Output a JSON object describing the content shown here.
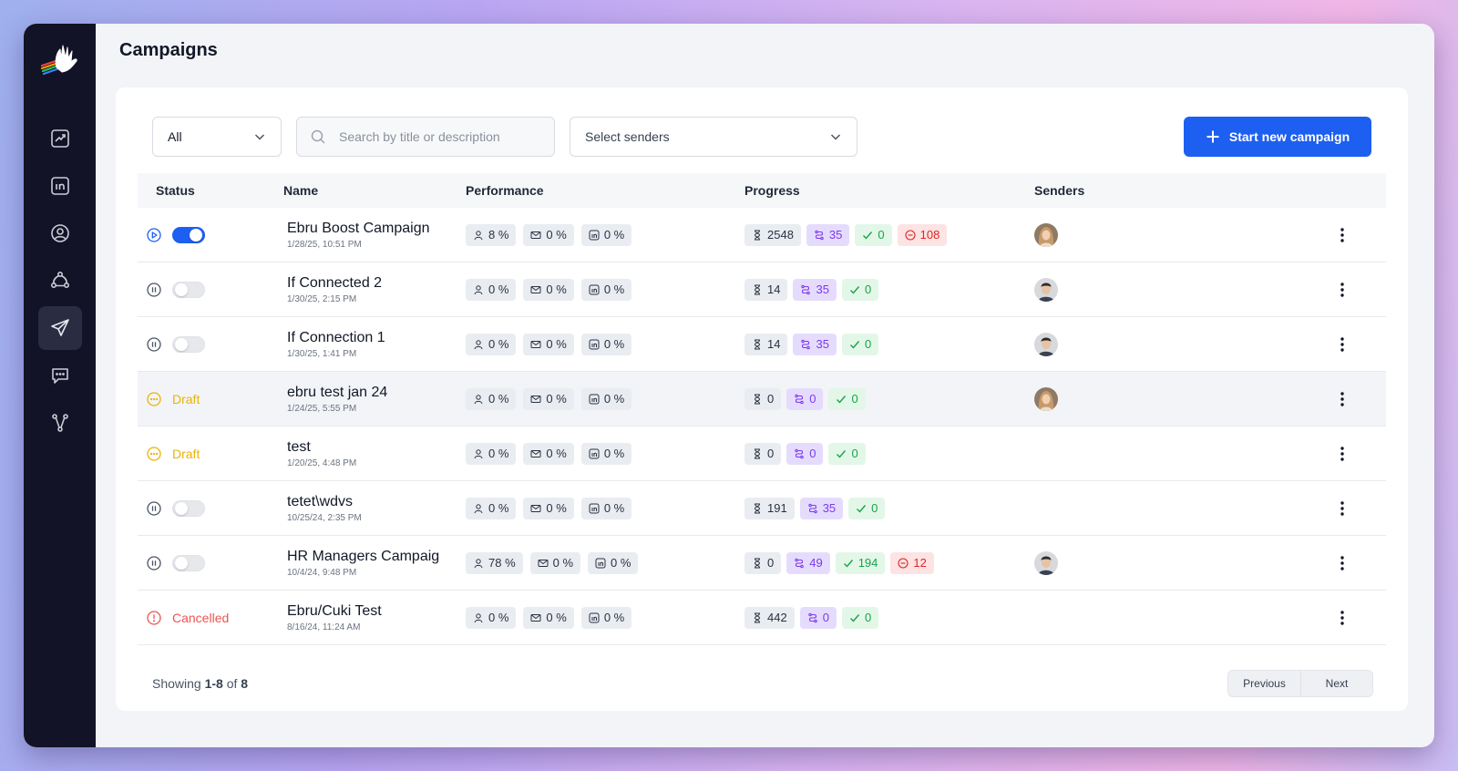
{
  "page_title": "Campaigns",
  "filters": {
    "status_value": "All",
    "search_placeholder": "Search by title or description",
    "senders_placeholder": "Select senders",
    "new_campaign_label": "Start new campaign"
  },
  "table": {
    "headers": {
      "status": "Status",
      "name": "Name",
      "performance": "Performance",
      "progress": "Progress",
      "senders": "Senders"
    },
    "rows": [
      {
        "status": "active",
        "status_label": "",
        "name": "Ebru Boost Campaign",
        "date": "1/28/25, 10:51 PM",
        "perf": [
          "8 %",
          "0 %",
          "0 %"
        ],
        "prog": {
          "pending": "2548",
          "in_progress": "35",
          "done": "0",
          "failed": "108"
        },
        "sender": "female"
      },
      {
        "status": "paused",
        "status_label": "",
        "name": "If Connected 2",
        "date": "1/30/25, 2:15 PM",
        "perf": [
          "0 %",
          "0 %",
          "0 %"
        ],
        "prog": {
          "pending": "14",
          "in_progress": "35",
          "done": "0"
        },
        "sender": "male"
      },
      {
        "status": "paused",
        "status_label": "",
        "name": "If Connection 1",
        "date": "1/30/25, 1:41 PM",
        "perf": [
          "0 %",
          "0 %",
          "0 %"
        ],
        "prog": {
          "pending": "14",
          "in_progress": "35",
          "done": "0"
        },
        "sender": "male"
      },
      {
        "status": "draft",
        "status_label": "Draft",
        "name": "ebru test jan 24",
        "date": "1/24/25, 5:55 PM",
        "perf": [
          "0 %",
          "0 %",
          "0 %"
        ],
        "prog": {
          "pending": "0",
          "in_progress": "0",
          "done": "0"
        },
        "sender": "female"
      },
      {
        "status": "draft",
        "status_label": "Draft",
        "name": "test",
        "date": "1/20/25, 4:48 PM",
        "perf": [
          "0 %",
          "0 %",
          "0 %"
        ],
        "prog": {
          "pending": "0",
          "in_progress": "0",
          "done": "0"
        },
        "sender": ""
      },
      {
        "status": "paused",
        "status_label": "",
        "name": "tetet\\wdvs",
        "date": "10/25/24, 2:35 PM",
        "perf": [
          "0 %",
          "0 %",
          "0 %"
        ],
        "prog": {
          "pending": "191",
          "in_progress": "35",
          "done": "0"
        },
        "sender": ""
      },
      {
        "status": "paused",
        "status_label": "",
        "name": "HR Managers Campaig",
        "date": "10/4/24, 9:48 PM",
        "perf": [
          "78 %",
          "0 %",
          "0 %"
        ],
        "prog": {
          "pending": "0",
          "in_progress": "49",
          "done": "194",
          "failed": "12"
        },
        "sender": "male"
      },
      {
        "status": "cancelled",
        "status_label": "Cancelled",
        "name": "Ebru/Cuki Test",
        "date": "8/16/24, 11:24 AM",
        "perf": [
          "0 %",
          "0 %",
          "0 %"
        ],
        "prog": {
          "pending": "442",
          "in_progress": "0",
          "done": "0"
        },
        "sender": ""
      }
    ]
  },
  "footer": {
    "showing_prefix": "Showing",
    "range": "1-8",
    "of_word": "of",
    "total": "8",
    "prev_label": "Previous",
    "next_label": "Next"
  },
  "sidebar": {
    "items": [
      "chart-icon",
      "linkedin-icon",
      "user-circle-icon",
      "network-icon",
      "send-icon",
      "chat-icon",
      "workflow-icon"
    ],
    "active_index": 4
  },
  "colors": {
    "accent": "#1d5ff0",
    "sidebar": "#121326",
    "draft": "#eab308",
    "cancelled": "#ef5350"
  }
}
